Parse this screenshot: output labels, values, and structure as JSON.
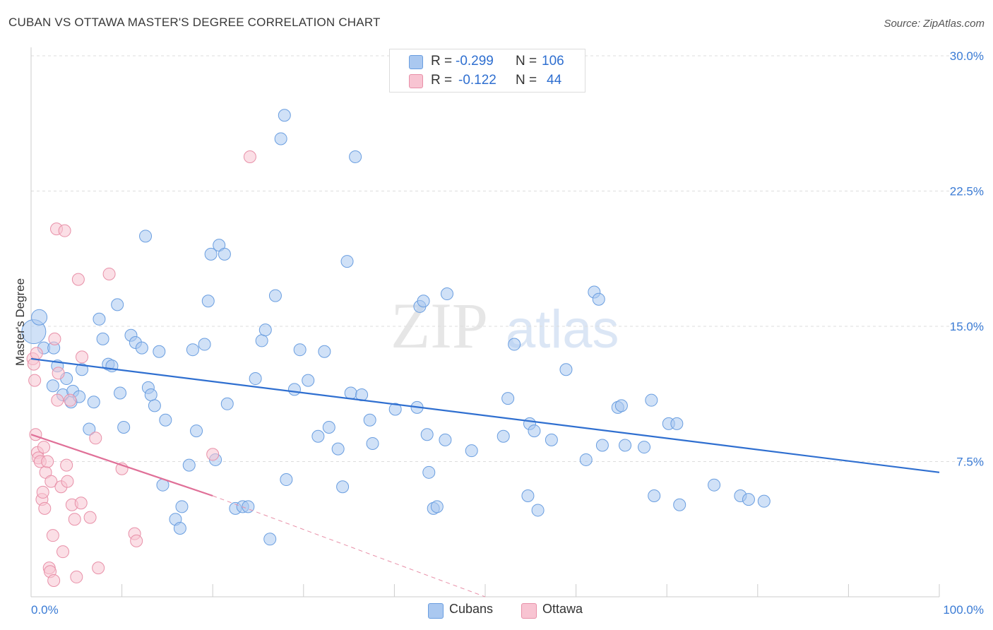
{
  "title": "CUBAN VS OTTAWA MASTER'S DEGREE CORRELATION CHART",
  "source": "Source: ZipAtlas.com",
  "watermark": {
    "zip": "ZIP",
    "atlas": "atlas"
  },
  "legend": {
    "rows": [
      {
        "r_label": "R =",
        "r_value": "-0.299",
        "n_label": "N =",
        "n_value": "106",
        "color": "#aac8f0",
        "stroke": "#6a9ee0"
      },
      {
        "r_label": "R =",
        "r_value": "-0.122",
        "n_label": "N =",
        "n_value": "44",
        "color": "#f8c4d2",
        "stroke": "#e890a8"
      }
    ]
  },
  "bottom_legend": [
    {
      "label": "Cubans",
      "color": "#aac8f0",
      "stroke": "#6a9ee0"
    },
    {
      "label": "Ottawa",
      "color": "#f8c4d2",
      "stroke": "#e890a8"
    }
  ],
  "chart_data": {
    "type": "scatter",
    "title": "CUBAN VS OTTAWA MASTER'S DEGREE CORRELATION CHART",
    "xlabel": "",
    "ylabel": "Master's Degree",
    "xlim": [
      0,
      100
    ],
    "ylim": [
      0,
      30.0
    ],
    "x_tick_labels": [
      "0.0%",
      "100.0%"
    ],
    "y_ticks": [
      7.5,
      15.0,
      22.5,
      30.0
    ],
    "y_tick_labels": [
      "7.5%",
      "15.0%",
      "22.5%",
      "30.0%"
    ],
    "grid": true,
    "legend_position": "top-center",
    "colors": {
      "cubans": "#2f6fd0",
      "ottawa": "#e07098"
    },
    "series": [
      {
        "name": "Cubans",
        "color": "#aac8f0",
        "trend": {
          "x": [
            0,
            100
          ],
          "y": [
            13.2,
            6.9
          ]
        },
        "points": [
          [
            0.3,
            14.7
          ],
          [
            0.9,
            15.5
          ],
          [
            1.4,
            13.8
          ],
          [
            2.4,
            11.7
          ],
          [
            2.5,
            13.8
          ],
          [
            2.9,
            12.8
          ],
          [
            3.5,
            11.2
          ],
          [
            3.9,
            12.1
          ],
          [
            4.4,
            10.8
          ],
          [
            4.6,
            11.4
          ],
          [
            5.3,
            11.1
          ],
          [
            5.6,
            12.6
          ],
          [
            6.4,
            9.3
          ],
          [
            6.9,
            10.8
          ],
          [
            7.5,
            15.4
          ],
          [
            7.9,
            14.3
          ],
          [
            8.5,
            12.9
          ],
          [
            8.9,
            12.8
          ],
          [
            9.5,
            16.2
          ],
          [
            9.8,
            11.3
          ],
          [
            10.2,
            9.4
          ],
          [
            11.0,
            14.5
          ],
          [
            11.5,
            14.1
          ],
          [
            12.2,
            13.8
          ],
          [
            12.6,
            20.0
          ],
          [
            12.9,
            11.6
          ],
          [
            13.2,
            11.2
          ],
          [
            13.6,
            10.6
          ],
          [
            14.1,
            13.6
          ],
          [
            14.5,
            6.2
          ],
          [
            14.8,
            9.8
          ],
          [
            15.9,
            4.3
          ],
          [
            16.4,
            3.8
          ],
          [
            16.6,
            5.0
          ],
          [
            17.4,
            7.3
          ],
          [
            17.8,
            13.7
          ],
          [
            18.2,
            9.2
          ],
          [
            19.1,
            14.0
          ],
          [
            19.5,
            16.4
          ],
          [
            19.8,
            19.0
          ],
          [
            20.3,
            7.6
          ],
          [
            20.7,
            19.5
          ],
          [
            21.3,
            19.0
          ],
          [
            21.6,
            10.7
          ],
          [
            22.5,
            4.9
          ],
          [
            23.3,
            5.0
          ],
          [
            23.9,
            5.0
          ],
          [
            24.7,
            12.1
          ],
          [
            25.4,
            14.2
          ],
          [
            25.8,
            14.8
          ],
          [
            26.3,
            3.2
          ],
          [
            26.9,
            16.7
          ],
          [
            27.5,
            25.4
          ],
          [
            27.9,
            26.7
          ],
          [
            28.1,
            6.5
          ],
          [
            29.0,
            11.5
          ],
          [
            29.6,
            13.7
          ],
          [
            30.5,
            12.0
          ],
          [
            31.6,
            8.9
          ],
          [
            32.3,
            13.6
          ],
          [
            32.8,
            9.4
          ],
          [
            33.8,
            8.2
          ],
          [
            34.3,
            6.1
          ],
          [
            34.8,
            18.6
          ],
          [
            35.2,
            11.3
          ],
          [
            35.7,
            24.4
          ],
          [
            36.4,
            11.2
          ],
          [
            37.3,
            9.8
          ],
          [
            37.6,
            8.5
          ],
          [
            40.1,
            10.4
          ],
          [
            42.5,
            10.5
          ],
          [
            42.8,
            16.1
          ],
          [
            43.2,
            16.4
          ],
          [
            43.6,
            9.0
          ],
          [
            43.8,
            6.9
          ],
          [
            44.3,
            4.9
          ],
          [
            44.7,
            5.0
          ],
          [
            45.6,
            8.7
          ],
          [
            45.8,
            16.8
          ],
          [
            48.5,
            8.1
          ],
          [
            52.0,
            8.9
          ],
          [
            52.5,
            11.0
          ],
          [
            53.2,
            14.0
          ],
          [
            54.7,
            5.6
          ],
          [
            54.9,
            9.6
          ],
          [
            55.4,
            9.2
          ],
          [
            55.8,
            4.8
          ],
          [
            57.3,
            8.7
          ],
          [
            58.9,
            12.6
          ],
          [
            61.1,
            7.6
          ],
          [
            62.0,
            16.9
          ],
          [
            62.5,
            16.5
          ],
          [
            62.9,
            8.4
          ],
          [
            64.6,
            10.5
          ],
          [
            65.0,
            10.6
          ],
          [
            65.4,
            8.4
          ],
          [
            67.5,
            8.3
          ],
          [
            68.3,
            10.9
          ],
          [
            68.6,
            5.6
          ],
          [
            70.2,
            9.6
          ],
          [
            71.1,
            9.6
          ],
          [
            71.4,
            5.1
          ],
          [
            75.2,
            6.2
          ],
          [
            78.1,
            5.6
          ],
          [
            79.0,
            5.4
          ],
          [
            80.7,
            5.3
          ]
        ]
      },
      {
        "name": "Ottawa",
        "color": "#f8c4d2",
        "trend": {
          "x": [
            0,
            20
          ],
          "y": [
            9.0,
            5.6
          ]
        },
        "trend_extension": {
          "x": [
            20,
            50
          ],
          "y": [
            5.6,
            0.0
          ]
        },
        "points": [
          [
            0.2,
            13.2
          ],
          [
            0.3,
            12.9
          ],
          [
            0.4,
            12.0
          ],
          [
            0.5,
            9.0
          ],
          [
            0.6,
            13.5
          ],
          [
            0.7,
            8.0
          ],
          [
            0.8,
            7.7
          ],
          [
            1.0,
            7.5
          ],
          [
            1.2,
            5.4
          ],
          [
            1.3,
            5.8
          ],
          [
            1.4,
            8.3
          ],
          [
            1.5,
            4.9
          ],
          [
            1.6,
            6.9
          ],
          [
            1.8,
            7.5
          ],
          [
            2.0,
            1.6
          ],
          [
            2.1,
            1.4
          ],
          [
            2.2,
            6.4
          ],
          [
            2.4,
            3.4
          ],
          [
            2.5,
            0.9
          ],
          [
            2.6,
            14.3
          ],
          [
            2.8,
            20.4
          ],
          [
            2.9,
            10.9
          ],
          [
            3.0,
            12.4
          ],
          [
            3.3,
            6.1
          ],
          [
            3.5,
            2.5
          ],
          [
            3.7,
            20.3
          ],
          [
            3.9,
            7.3
          ],
          [
            4.0,
            6.4
          ],
          [
            4.3,
            10.9
          ],
          [
            4.5,
            5.1
          ],
          [
            4.8,
            4.3
          ],
          [
            5.0,
            1.1
          ],
          [
            5.2,
            17.6
          ],
          [
            5.5,
            5.2
          ],
          [
            6.5,
            4.4
          ],
          [
            7.1,
            8.8
          ],
          [
            7.4,
            1.6
          ],
          [
            8.6,
            17.9
          ],
          [
            10.0,
            7.1
          ],
          [
            11.4,
            3.5
          ],
          [
            11.6,
            3.1
          ],
          [
            20.0,
            7.9
          ],
          [
            24.1,
            24.4
          ],
          [
            5.6,
            13.3
          ]
        ]
      }
    ]
  }
}
